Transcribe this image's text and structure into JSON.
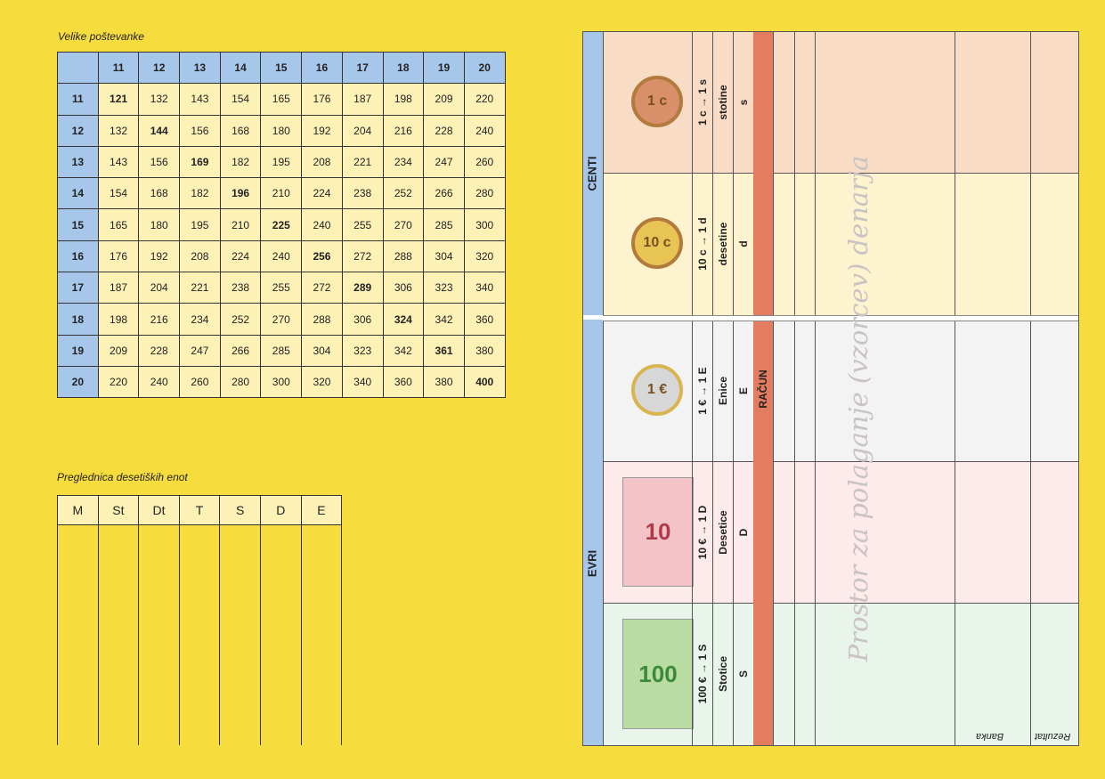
{
  "multiplication": {
    "title": "Velike poštevanke",
    "header": [
      "11",
      "12",
      "13",
      "14",
      "15",
      "16",
      "17",
      "18",
      "19",
      "20"
    ],
    "rows": [
      [
        "11",
        "121",
        "132",
        "143",
        "154",
        "165",
        "176",
        "187",
        "198",
        "209",
        "220"
      ],
      [
        "12",
        "132",
        "144",
        "156",
        "168",
        "180",
        "192",
        "204",
        "216",
        "228",
        "240"
      ],
      [
        "13",
        "143",
        "156",
        "169",
        "182",
        "195",
        "208",
        "221",
        "234",
        "247",
        "260"
      ],
      [
        "14",
        "154",
        "168",
        "182",
        "196",
        "210",
        "224",
        "238",
        "252",
        "266",
        "280"
      ],
      [
        "15",
        "165",
        "180",
        "195",
        "210",
        "225",
        "240",
        "255",
        "270",
        "285",
        "300"
      ],
      [
        "16",
        "176",
        "192",
        "208",
        "224",
        "240",
        "256",
        "272",
        "288",
        "304",
        "320"
      ],
      [
        "17",
        "187",
        "204",
        "221",
        "238",
        "255",
        "272",
        "289",
        "306",
        "323",
        "340"
      ],
      [
        "18",
        "198",
        "216",
        "234",
        "252",
        "270",
        "288",
        "306",
        "324",
        "342",
        "360"
      ],
      [
        "19",
        "209",
        "228",
        "247",
        "266",
        "285",
        "304",
        "323",
        "342",
        "361",
        "380"
      ],
      [
        "20",
        "220",
        "240",
        "260",
        "280",
        "300",
        "320",
        "340",
        "360",
        "380",
        "400"
      ]
    ]
  },
  "places": {
    "title": "Preglednica desetiških enot",
    "headers": [
      "M",
      "St",
      "Dt",
      "T",
      "S",
      "D",
      "E"
    ]
  },
  "money": {
    "centi_label": "CENTI",
    "evri_label": "EVRI",
    "racun_label": "RAČUN",
    "space_label": "Prostor za polaganje (vzorcev) denarja",
    "banka_label": "Banka",
    "rezultat_label": "Rezultat",
    "rows": [
      {
        "conv": "1 c → 1 s",
        "name": "stotine",
        "sym": "s",
        "coin": "1 c",
        "bg": "#f8dcc6"
      },
      {
        "conv": "10 c → 1 d",
        "name": "desetine",
        "sym": "d",
        "coin": "10 c",
        "bg": "#fdf3cf"
      },
      {
        "conv": "1 € → 1 E",
        "name": "Enice",
        "sym": "E",
        "coin": "1 €",
        "bg": "#f3f3f3"
      },
      {
        "conv": "10 € → 1 D",
        "name": "Desetice",
        "sym": "D",
        "coin": "10",
        "bg": "#fdeaea"
      },
      {
        "conv": "100 € → 1 S",
        "name": "Stotice",
        "sym": "S",
        "coin": "100",
        "bg": "#e9f4ea"
      }
    ]
  }
}
